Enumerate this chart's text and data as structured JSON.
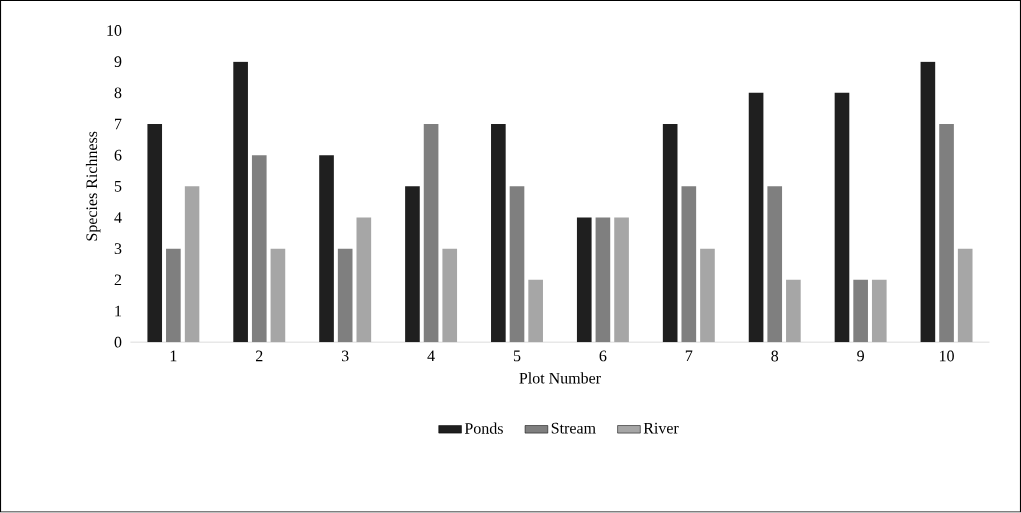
{
  "chart_data": {
    "type": "bar",
    "xlabel": "Plot Number",
    "ylabel": "Species Richness",
    "categories": [
      "1",
      "2",
      "3",
      "4",
      "5",
      "6",
      "7",
      "8",
      "9",
      "10"
    ],
    "series": [
      {
        "name": "Ponds",
        "color": "#1f1f1f",
        "values": [
          7,
          9,
          6,
          5,
          7,
          4,
          7,
          8,
          8,
          9
        ]
      },
      {
        "name": "Stream",
        "color": "#7f7f7f",
        "values": [
          3,
          6,
          3,
          7,
          5,
          4,
          5,
          5,
          2,
          7
        ]
      },
      {
        "name": "River",
        "color": "#a6a6a6",
        "values": [
          5,
          3,
          4,
          3,
          2,
          4,
          3,
          2,
          2,
          3
        ]
      }
    ],
    "ylim": [
      0,
      10
    ],
    "yticks": [
      0,
      1,
      2,
      3,
      4,
      5,
      6,
      7,
      8,
      9,
      10
    ],
    "grid": false,
    "legend": "bottom"
  }
}
